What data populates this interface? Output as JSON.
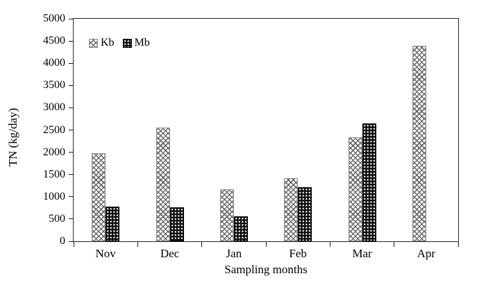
{
  "chart_data": {
    "type": "bar",
    "title": "",
    "xlabel": "Sampling months",
    "ylabel": "TN (kg/day)",
    "categories": [
      "Nov",
      "Dec",
      "Jan",
      "Feb",
      "Mar",
      "Apr"
    ],
    "series": [
      {
        "name": "Kb",
        "values": [
          1980,
          2560,
          1170,
          1420,
          2330,
          4400
        ]
      },
      {
        "name": "Mb",
        "values": [
          780,
          760,
          560,
          1220,
          2650,
          null
        ]
      }
    ],
    "ylim": [
      0,
      5000
    ],
    "yticks": [
      0,
      500,
      1000,
      1500,
      2000,
      2500,
      3000,
      3500,
      4000,
      4500,
      5000
    ],
    "grid": "off",
    "legend_position": "top-left-inside",
    "colors": {
      "kb_pattern": "#646464",
      "mb_fill": "#0d0d0d",
      "axis": "#1a1a1a",
      "text": "#000000",
      "background": "#ffffff"
    }
  }
}
